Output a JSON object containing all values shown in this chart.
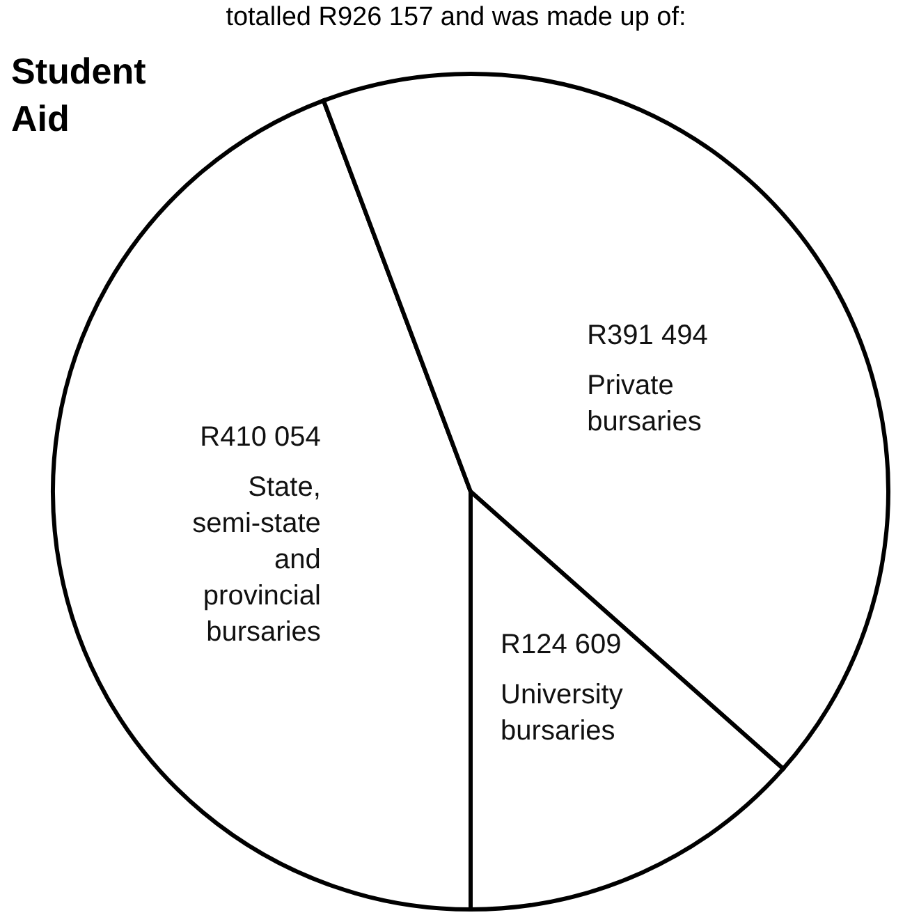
{
  "chart_data": {
    "type": "pie",
    "title": "Student Aid",
    "annotations": [
      "totalled R926 157 and was made up of:"
    ],
    "categories": [
      "State, semi-state and provincial bursaries",
      "Private bursaries",
      "University bursaries"
    ],
    "values": [
      410054,
      391494,
      124609
    ],
    "value_labels": [
      "R410 054",
      "R391 494",
      "R124 609"
    ],
    "colors": [
      "#ffffff",
      "#ffffff",
      "#ffffff"
    ],
    "legend": false
  }
}
